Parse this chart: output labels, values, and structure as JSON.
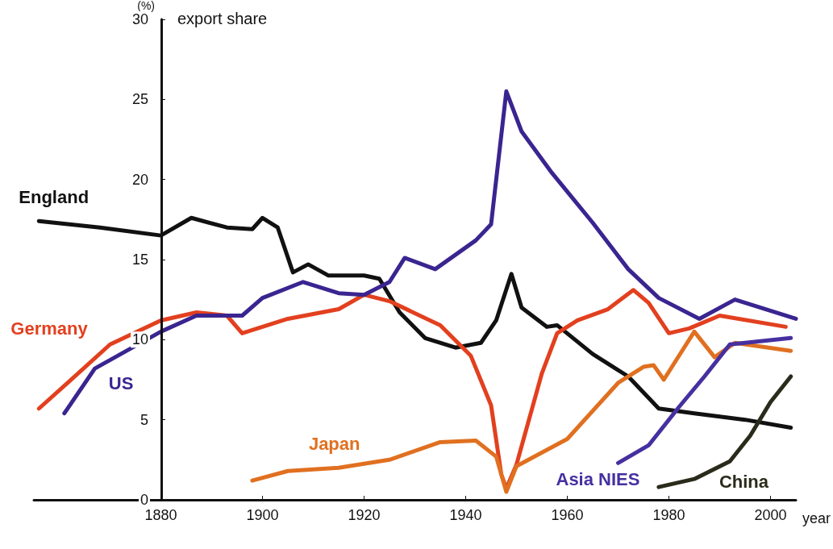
{
  "chart_data": {
    "type": "line",
    "title": "export share",
    "xlabel": "year",
    "ylabel": "(%)",
    "xlim": [
      1855,
      2005
    ],
    "ylim": [
      0,
      30
    ],
    "xticks": [
      1880,
      1900,
      1920,
      1940,
      1960,
      1980,
      2000
    ],
    "yticks": [
      0,
      5,
      10,
      15,
      20,
      25,
      30
    ],
    "marker": "none",
    "line_style": "solid",
    "series": [
      {
        "name": "England",
        "color": "#111111",
        "x": [
          1856,
          1868,
          1880,
          1886,
          1893,
          1898,
          1900,
          1903,
          1906,
          1909,
          1913,
          1920,
          1923,
          1927,
          1932,
          1938,
          1943,
          1946,
          1949,
          1951,
          1956,
          1958,
          1965,
          1972,
          1978,
          1985,
          1995,
          2004
        ],
        "values": [
          17.4,
          17.0,
          16.5,
          17.6,
          17.0,
          16.9,
          17.6,
          17.0,
          14.2,
          14.7,
          14.0,
          14.0,
          13.8,
          11.7,
          10.1,
          9.5,
          9.8,
          11.2,
          14.1,
          12.0,
          10.8,
          10.9,
          9.1,
          7.7,
          5.7,
          5.4,
          5.0,
          4.5
        ]
      },
      {
        "name": "Germany",
        "color": "#e2401f",
        "x": [
          1856,
          1862,
          1870,
          1880,
          1887,
          1893,
          1896,
          1905,
          1915,
          1920,
          1925,
          1935,
          1941,
          1945,
          1947,
          1948,
          1950,
          1955,
          1958,
          1962,
          1968,
          1973,
          1976,
          1980,
          1984,
          1990,
          2003
        ],
        "values": [
          5.7,
          7.4,
          9.7,
          11.2,
          11.7,
          11.5,
          10.4,
          11.3,
          11.9,
          12.8,
          12.4,
          10.9,
          9.0,
          5.9,
          1.6,
          0.7,
          2.2,
          7.9,
          10.4,
          11.2,
          11.9,
          13.1,
          12.3,
          10.4,
          10.7,
          11.5,
          10.8
        ]
      },
      {
        "name": "US",
        "color": "#3a2590",
        "x": [
          1861,
          1867,
          1880,
          1887,
          1896,
          1900,
          1908,
          1915,
          1920,
          1925,
          1928,
          1934,
          1942,
          1945,
          1948,
          1951,
          1957,
          1965,
          1972,
          1978,
          1986,
          1993,
          2005
        ],
        "values": [
          5.4,
          8.2,
          10.5,
          11.5,
          11.5,
          12.6,
          13.6,
          12.9,
          12.8,
          13.6,
          15.1,
          14.4,
          16.2,
          17.2,
          25.5,
          23.0,
          20.4,
          17.3,
          14.4,
          12.6,
          11.3,
          12.5,
          11.3
        ]
      },
      {
        "name": "Japan",
        "color": "#e07020",
        "x": [
          1898,
          1905,
          1915,
          1925,
          1935,
          1942,
          1946,
          1948,
          1950,
          1960,
          1970,
          1975,
          1977,
          1979,
          1985,
          1989,
          1993,
          2004
        ],
        "values": [
          1.2,
          1.8,
          2.0,
          2.5,
          3.6,
          3.7,
          2.7,
          0.5,
          2.1,
          3.8,
          7.3,
          8.3,
          8.4,
          7.5,
          10.5,
          8.9,
          9.8,
          9.3
        ]
      },
      {
        "name": "Asia NIES",
        "color": "#4630a0",
        "x": [
          1970,
          1976,
          1982,
          1987,
          1992,
          2004
        ],
        "values": [
          2.3,
          3.4,
          5.8,
          7.7,
          9.7,
          10.1
        ]
      },
      {
        "name": "China",
        "color": "#2b2b1b",
        "x": [
          1978,
          1985,
          1992,
          1996,
          2000,
          2004
        ],
        "values": [
          0.8,
          1.3,
          2.4,
          4.0,
          6.1,
          7.7
        ]
      }
    ]
  }
}
